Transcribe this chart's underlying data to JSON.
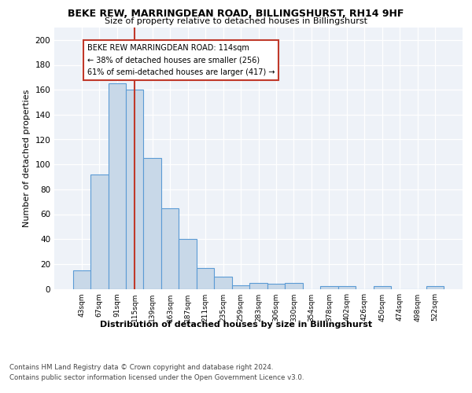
{
  "title1": "BEKE REW, MARRINGDEAN ROAD, BILLINGSHURST, RH14 9HF",
  "title2": "Size of property relative to detached houses in Billingshurst",
  "xlabel": "Distribution of detached houses by size in Billingshurst",
  "ylabel": "Number of detached properties",
  "bin_labels": [
    "43sqm",
    "67sqm",
    "91sqm",
    "115sqm",
    "139sqm",
    "163sqm",
    "187sqm",
    "211sqm",
    "235sqm",
    "259sqm",
    "283sqm",
    "306sqm",
    "330sqm",
    "354sqm",
    "378sqm",
    "402sqm",
    "426sqm",
    "450sqm",
    "474sqm",
    "498sqm",
    "522sqm"
  ],
  "bar_heights": [
    15,
    92,
    165,
    160,
    105,
    65,
    40,
    17,
    10,
    3,
    5,
    4,
    5,
    0,
    2,
    2,
    0,
    2,
    0,
    0,
    2
  ],
  "bar_color": "#c8d8e8",
  "bar_edge_color": "#5b9bd5",
  "vline_x": 3.0,
  "vline_color": "#c0392b",
  "annotation_line1": "BEKE REW MARRINGDEAN ROAD: 114sqm",
  "annotation_line2": "← 38% of detached houses are smaller (256)",
  "annotation_line3": "61% of semi-detached houses are larger (417) →",
  "annotation_box_edge": "#c0392b",
  "ylim": [
    0,
    210
  ],
  "yticks": [
    0,
    20,
    40,
    60,
    80,
    100,
    120,
    140,
    160,
    180,
    200
  ],
  "footer1": "Contains HM Land Registry data © Crown copyright and database right 2024.",
  "footer2": "Contains public sector information licensed under the Open Government Licence v3.0.",
  "bg_color": "#eef2f8"
}
